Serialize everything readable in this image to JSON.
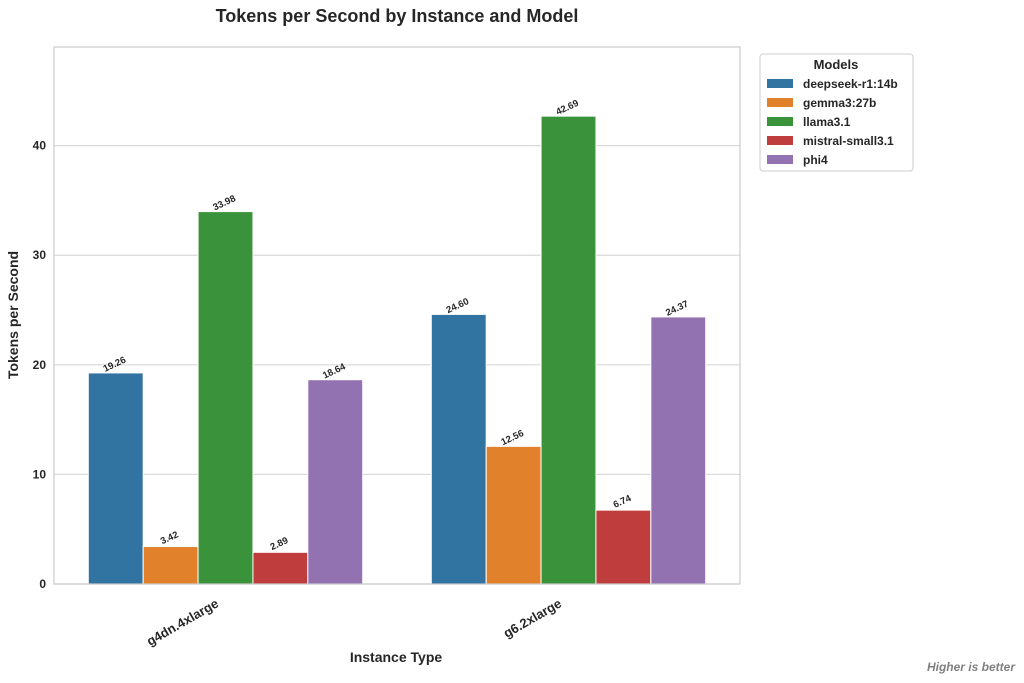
{
  "chart_data": {
    "type": "bar",
    "title": "Tokens per Second by Instance and Model",
    "xlabel": "Instance Type",
    "ylabel": "Tokens per Second",
    "categories": [
      "g4dn.4xlarge",
      "g6.2xlarge"
    ],
    "series": [
      {
        "name": "deepseek-r1:14b",
        "values": [
          19.26,
          24.6
        ],
        "labels": [
          "19.26",
          "24.60"
        ],
        "color": "#3274a1"
      },
      {
        "name": "gemma3:27b",
        "values": [
          3.42,
          12.56
        ],
        "labels": [
          "3.42",
          "12.56"
        ],
        "color": "#e1812c"
      },
      {
        "name": "llama3.1",
        "values": [
          33.98,
          42.69
        ],
        "labels": [
          "33.98",
          "42.69"
        ],
        "color": "#3a923a"
      },
      {
        "name": "mistral-small3.1",
        "values": [
          2.89,
          6.74
        ],
        "labels": [
          "2.89",
          "6.74"
        ],
        "color": "#c03d3e"
      },
      {
        "name": "phi4",
        "values": [
          18.64,
          24.37
        ],
        "labels": [
          "18.64",
          "24.37"
        ],
        "color": "#9372b2"
      }
    ],
    "yticks": [
      0,
      10,
      20,
      30,
      40
    ],
    "ylim": [
      0,
      49
    ],
    "grid": true,
    "legend": {
      "title": "Models",
      "placement": "outside-top-right"
    },
    "note": "Higher is better"
  }
}
